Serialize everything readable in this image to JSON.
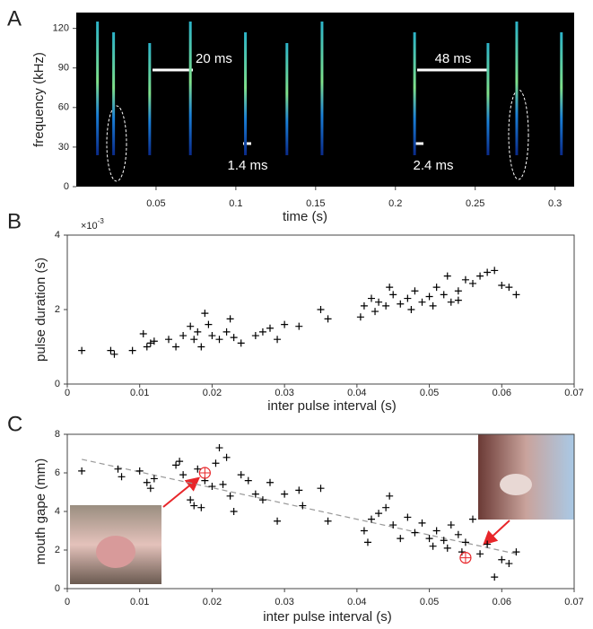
{
  "chart_data": [
    {
      "type": "spectrogram",
      "panel": "A",
      "xlabel": "time (s)",
      "ylabel": "frequency (kHz)",
      "x": [
        0.0133,
        0.0234,
        0.046,
        0.0715,
        0.106,
        0.132,
        0.154,
        0.212,
        0.258,
        0.276,
        0.304
      ],
      "xlim": [
        0,
        0.312
      ],
      "xticks": [
        0.05,
        0.1,
        0.15,
        0.2,
        0.25,
        0.3
      ],
      "ylim": [
        0,
        132
      ],
      "yticks": [
        0,
        30,
        60,
        90,
        120
      ],
      "annotations": [
        "20 ms",
        "1.4 ms",
        "48 ms",
        "2.4 ms"
      ]
    },
    {
      "type": "scatter",
      "panel": "B",
      "xlabel": "inter pulse interval (s)",
      "ylabel": "pulse duration (s)",
      "y_multiplier": "×10",
      "y_multiplier_exponent": "-3",
      "color": "#000000",
      "x": [
        0.002,
        0.006,
        0.0065,
        0.009,
        0.0105,
        0.011,
        0.0115,
        0.012,
        0.014,
        0.015,
        0.016,
        0.017,
        0.0175,
        0.018,
        0.0185,
        0.019,
        0.0195,
        0.02,
        0.021,
        0.022,
        0.0225,
        0.023,
        0.024,
        0.026,
        0.027,
        0.028,
        0.029,
        0.03,
        0.032,
        0.035,
        0.036,
        0.0405,
        0.041,
        0.042,
        0.0425,
        0.043,
        0.044,
        0.045,
        0.046,
        0.047,
        0.048,
        0.049,
        0.05,
        0.0505,
        0.051,
        0.052,
        0.053,
        0.054,
        0.055,
        0.056,
        0.057,
        0.058,
        0.059,
        0.06,
        0.061,
        0.062,
        0.0445,
        0.0475,
        0.0525,
        0.054
      ],
      "y": [
        0.9,
        0.9,
        0.8,
        0.9,
        1.35,
        1.0,
        1.1,
        1.15,
        1.2,
        1.0,
        1.3,
        1.55,
        1.2,
        1.4,
        1.0,
        1.9,
        1.6,
        1.3,
        1.2,
        1.4,
        1.75,
        1.25,
        1.1,
        1.3,
        1.4,
        1.5,
        1.2,
        1.6,
        1.55,
        2.0,
        1.75,
        1.8,
        2.1,
        2.3,
        1.95,
        2.2,
        2.1,
        2.4,
        2.15,
        2.3,
        2.5,
        2.2,
        2.35,
        2.1,
        2.6,
        2.4,
        2.2,
        2.5,
        2.8,
        2.7,
        2.9,
        3.0,
        3.05,
        2.65,
        2.6,
        2.4,
        2.6,
        2.0,
        2.9,
        2.25
      ],
      "xlim": [
        0,
        0.07
      ],
      "xticks": [
        0,
        0.01,
        0.02,
        0.03,
        0.04,
        0.05,
        0.06,
        0.07
      ],
      "ylim": [
        0,
        4
      ],
      "yticks": [
        0,
        2,
        4
      ]
    },
    {
      "type": "scatter",
      "panel": "C",
      "xlabel": "inter pulse interval (s)",
      "ylabel": "mouth gape (mm)",
      "color": "#000000",
      "x": [
        0.002,
        0.007,
        0.0075,
        0.01,
        0.011,
        0.0115,
        0.012,
        0.015,
        0.0155,
        0.016,
        0.017,
        0.0175,
        0.018,
        0.0185,
        0.019,
        0.02,
        0.0205,
        0.021,
        0.0215,
        0.022,
        0.0225,
        0.023,
        0.024,
        0.025,
        0.026,
        0.027,
        0.028,
        0.029,
        0.03,
        0.032,
        0.0325,
        0.035,
        0.036,
        0.041,
        0.0415,
        0.042,
        0.043,
        0.044,
        0.0445,
        0.045,
        0.046,
        0.047,
        0.048,
        0.049,
        0.05,
        0.0505,
        0.051,
        0.052,
        0.0525,
        0.053,
        0.054,
        0.0545,
        0.055,
        0.056,
        0.057,
        0.058,
        0.059,
        0.06,
        0.061,
        0.062
      ],
      "y": [
        6.1,
        6.2,
        5.8,
        6.1,
        5.5,
        5.2,
        5.7,
        6.4,
        6.6,
        5.9,
        4.6,
        4.3,
        6.2,
        4.2,
        5.6,
        5.3,
        6.5,
        7.3,
        5.4,
        6.8,
        4.8,
        4.0,
        5.9,
        5.6,
        4.9,
        4.6,
        5.5,
        3.5,
        4.9,
        5.1,
        4.3,
        5.2,
        3.5,
        3.0,
        2.4,
        3.6,
        3.9,
        4.2,
        4.8,
        3.3,
        2.6,
        3.7,
        2.9,
        3.4,
        2.6,
        2.2,
        3.0,
        2.5,
        2.1,
        3.3,
        2.8,
        1.9,
        2.4,
        3.6,
        1.8,
        2.3,
        0.6,
        1.5,
        1.3,
        1.9
      ],
      "trend_line": {
        "x": [
          0.002,
          0.062
        ],
        "y": [
          6.7,
          1.8
        ],
        "color": "#999999"
      },
      "highlight": {
        "x": [
          0.019,
          0.055
        ],
        "y": [
          6.0,
          1.6
        ],
        "color": "#e8262a"
      },
      "xlim": [
        0,
        0.07
      ],
      "xticks": [
        0,
        0.01,
        0.02,
        0.03,
        0.04,
        0.05,
        0.06,
        0.07
      ],
      "ylim": [
        0,
        8
      ],
      "yticks": [
        0,
        2,
        4,
        6,
        8
      ]
    }
  ]
}
